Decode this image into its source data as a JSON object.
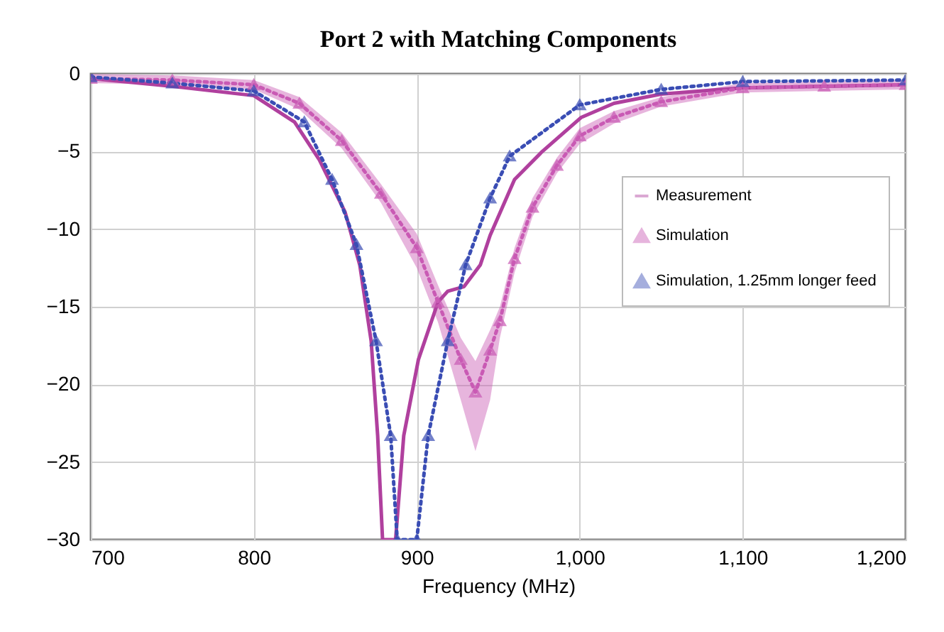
{
  "chart_data": {
    "type": "line",
    "title": "Port 2 with Matching Components",
    "xlabel": "Frequency (MHz)",
    "xlim": [
      700,
      1200
    ],
    "xticks": [
      700,
      800,
      900,
      {
        "value": 1000,
        "label": "1,000"
      },
      {
        "value": 1100,
        "label": "1,100"
      },
      {
        "value": 1200,
        "label": "1,200"
      }
    ],
    "ylim": [
      -30,
      0
    ],
    "yticks": [
      0,
      -5,
      -10,
      -15,
      -20,
      -25,
      -30
    ],
    "grid": true,
    "legend": "right",
    "series": [
      {
        "name": "Measurement",
        "color": "#b0409e",
        "line_style": "solid",
        "marker": "none",
        "x": [
          700,
          750,
          800,
          825,
          840,
          856,
          865,
          872,
          876,
          879,
          887,
          892,
          901,
          913,
          919,
          929,
          939,
          945,
          960,
          977,
          1001,
          1021,
          1050,
          1100,
          1150,
          1200
        ],
        "values": [
          -0.3,
          -0.8,
          -1.4,
          -3.1,
          -5.5,
          -8.9,
          -12.3,
          -17.2,
          -23.3,
          -30,
          -30,
          -23.3,
          -18.4,
          -14.7,
          -14.0,
          -13.7,
          -12.3,
          -10.4,
          -6.8,
          -5.0,
          -2.8,
          -1.9,
          -1.3,
          -0.9,
          -0.8,
          -0.7
        ]
      },
      {
        "name": "Simulation",
        "color": "#c95ab4",
        "line_style": "dotted",
        "marker": "triangle",
        "x": [
          700,
          750,
          800,
          828,
          854,
          878,
          900,
          913,
          927,
          936,
          945,
          951,
          960,
          971,
          986,
          1000,
          1021,
          1050,
          1100,
          1150,
          1200
        ],
        "values": [
          -0.3,
          -0.4,
          -0.7,
          -1.9,
          -4.3,
          -7.7,
          -11.2,
          -14.7,
          -18.4,
          -20.5,
          -17.8,
          -15.9,
          -11.9,
          -8.6,
          -5.9,
          -4.0,
          -2.8,
          -1.8,
          -0.9,
          -0.8,
          -0.7
        ],
        "lower": [
          -0.6,
          -0.7,
          -1.0,
          -2.3,
          -4.8,
          -8.3,
          -12.5,
          -16.0,
          -21.0,
          -24.3,
          -21.0,
          -17.0,
          -12.8,
          -9.2,
          -6.4,
          -4.5,
          -3.2,
          -2.1,
          -1.2,
          -1.1,
          -1.0
        ],
        "upper": [
          0,
          -0.1,
          -0.4,
          -1.5,
          -3.8,
          -7.1,
          -10.3,
          -13.6,
          -17.0,
          -18.5,
          -16.5,
          -15.0,
          -11.2,
          -8.0,
          -5.4,
          -3.5,
          -2.4,
          -1.5,
          -0.6,
          -0.5,
          -0.4
        ]
      },
      {
        "name": "Simulation, 1.25mm longer feed",
        "color": "#3a4db4",
        "line_style": "dotted",
        "marker": "triangle",
        "x": [
          700,
          750,
          800,
          831,
          848,
          863,
          875,
          884,
          888,
          900,
          907,
          919,
          930,
          945,
          957,
          1000,
          1050,
          1100,
          1200
        ],
        "values": [
          -0.2,
          -0.6,
          -1.1,
          -3.1,
          -6.8,
          -11.0,
          -17.2,
          -23.3,
          -30,
          -30,
          -23.3,
          -17.2,
          -12.3,
          -8.0,
          -5.3,
          -2.0,
          -1.0,
          -0.5,
          -0.4
        ]
      }
    ]
  }
}
